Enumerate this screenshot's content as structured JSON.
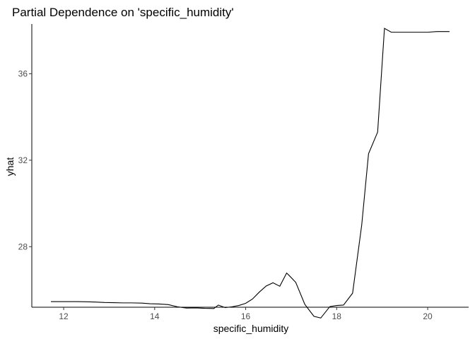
{
  "chart_data": {
    "type": "line",
    "title": "Partial Dependence on 'specific_humidity'",
    "xlabel": "specific_humidity",
    "ylabel": "yhat",
    "xlim": [
      11.3,
      20.9
    ],
    "ylim": [
      25.2,
      38.3
    ],
    "x_ticks": [
      12,
      14,
      16,
      18,
      20
    ],
    "y_ticks": [
      28,
      32,
      36
    ],
    "grid": false,
    "legend": "none",
    "line_color": "#000000",
    "series": [
      {
        "x": [
          11.72,
          11.9,
          12.1,
          12.3,
          12.5,
          12.7,
          12.9,
          13.1,
          13.3,
          13.5,
          13.72,
          13.9,
          14.1,
          14.3,
          14.5,
          14.7,
          14.9,
          15.1,
          15.3,
          15.4,
          15.55,
          15.7,
          15.85,
          16.0,
          16.15,
          16.3,
          16.45,
          16.6,
          16.75,
          16.9,
          16.95,
          17.1,
          17.3,
          17.5,
          17.65,
          17.85,
          18.0,
          18.15,
          18.35,
          18.55,
          18.7,
          18.9,
          19.05,
          19.2,
          19.4,
          19.6,
          19.8,
          20.0,
          20.2,
          20.48
        ],
        "y": [
          25.46,
          25.46,
          25.46,
          25.46,
          25.45,
          25.44,
          25.42,
          25.41,
          25.4,
          25.4,
          25.39,
          25.36,
          25.35,
          25.32,
          25.22,
          25.16,
          25.17,
          25.15,
          25.14,
          25.3,
          25.18,
          25.22,
          25.28,
          25.38,
          25.58,
          25.9,
          26.18,
          26.33,
          26.17,
          26.78,
          26.68,
          26.35,
          25.33,
          24.78,
          24.7,
          25.23,
          25.28,
          25.3,
          25.85,
          29.0,
          32.3,
          33.3,
          38.1,
          37.92,
          37.92,
          37.92,
          37.92,
          37.92,
          37.95,
          37.95
        ]
      }
    ]
  }
}
